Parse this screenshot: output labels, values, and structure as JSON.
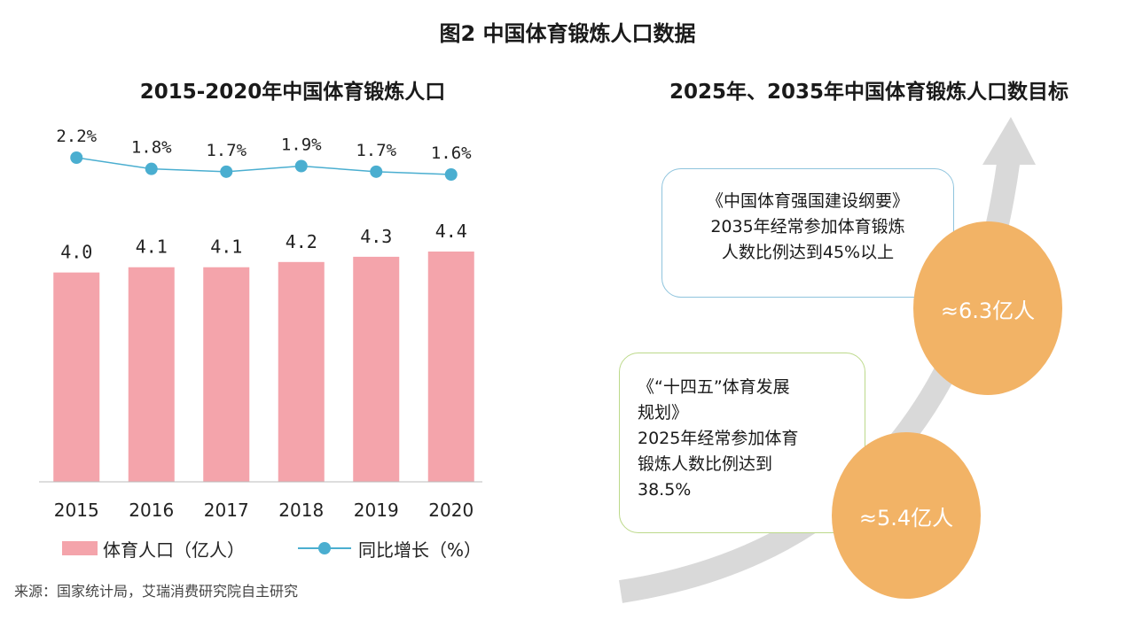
{
  "main_title": "图2 中国体育锻炼人口数据",
  "source": "来源：国家统计局，艾瑞消费研究院自主研究",
  "left_panel": {
    "title": "2015-2020年中国体育锻炼人口",
    "legend": {
      "bar_label": "体育人口（亿人）",
      "line_label": "同比增长（%）"
    }
  },
  "chart_data": {
    "type": "bar",
    "title": "2015-2020年中国体育锻炼人口",
    "categories": [
      "2015",
      "2016",
      "2017",
      "2018",
      "2019",
      "2020"
    ],
    "series": [
      {
        "name": "体育人口（亿人）",
        "type": "bar",
        "values": [
          4.0,
          4.1,
          4.1,
          4.2,
          4.3,
          4.4
        ],
        "labels": [
          "4.0",
          "4.1",
          "4.1",
          "4.2",
          "4.3",
          "4.4"
        ],
        "color": "#f4a4ab"
      },
      {
        "name": "同比增长（%）",
        "type": "line",
        "values": [
          2.2,
          1.8,
          1.7,
          1.9,
          1.7,
          1.6
        ],
        "labels": [
          "2.2%",
          "1.8%",
          "1.7%",
          "1.9%",
          "1.7%",
          "1.6%"
        ],
        "color": "#4aaed0"
      }
    ],
    "bar_ylim": [
      0,
      4.4
    ],
    "line_ylim": [
      1.6,
      2.2
    ],
    "grid": false,
    "legend_position": "bottom"
  },
  "right_panel": {
    "title": "2025年、2035年中国体育锻炼人口数目标",
    "callout_2035": {
      "lines": [
        "《中国体育强国建设纲要》",
        "2035年经常参加体育锻炼",
        "人数比例达到45%以上"
      ]
    },
    "callout_2025": {
      "lines": [
        "《“十四五”体育发展",
        "规划》",
        "2025年经常参加体育",
        "锻炼人数比例达到",
        "38.5%"
      ]
    },
    "bubble_2035": "≈6.3亿人",
    "bubble_2025": "≈5.4亿人"
  },
  "colors": {
    "bar": "#f4a4ab",
    "line": "#4aaed0",
    "bubble": "#f2b366",
    "arrow": "#d9d9d9",
    "callout_2035_border": "#8fc4dd",
    "callout_2025_border": "#bcd98a"
  }
}
